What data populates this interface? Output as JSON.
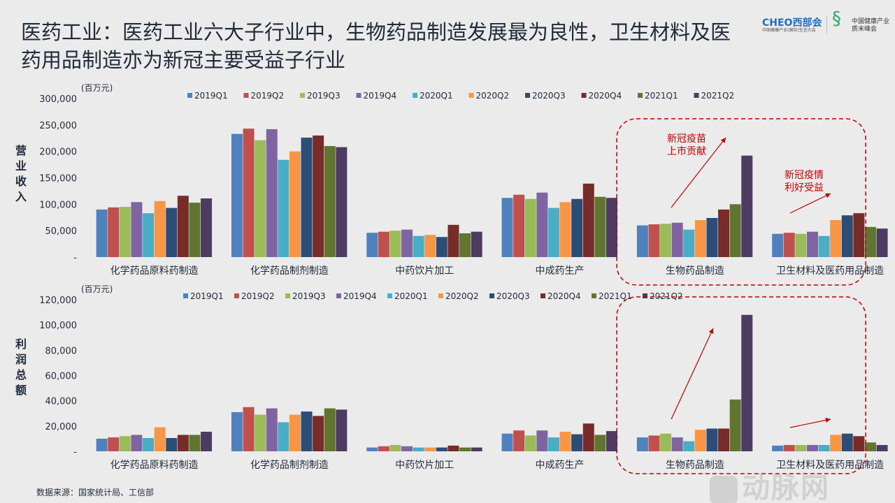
{
  "title": "医药工业：医药工业六大子行业中，生物药品制造发展最为良性，卫生材料及医药用品制造亦为新冠主要受益子行业",
  "logo": {
    "cheo": "CHEO西部会",
    "cheo_sub": "中国健康产业(国际)生态大会",
    "summit": "中国健康产业",
    "summit2": "质末峰会"
  },
  "source": "数据来源：国家统计局、工信部",
  "watermark": "动脉网",
  "annotations": {
    "vaccine": [
      "新冠疫苗",
      "上市贡献"
    ],
    "epidemic": [
      "新冠疫情",
      "利好受益"
    ]
  },
  "colors": [
    "#4f81bd",
    "#c0504d",
    "#9bbb59",
    "#8064a2",
    "#4bacc6",
    "#f79646",
    "#2c4d75",
    "#772c2a",
    "#5f7530",
    "#4d3b62"
  ],
  "chart_data": [
    {
      "type": "bar",
      "unit": "(百万元)",
      "ylabel": "营业收入",
      "ylim": [
        0,
        300000
      ],
      "yticks": [
        "-",
        "50,000",
        "100,000",
        "150,000",
        "200,000",
        "250,000",
        "300,000"
      ],
      "categories": [
        "化学药品原料药制造",
        "化学药品制剂制造",
        "中药饮片加工",
        "中成药生产",
        "生物药品制造",
        "卫生材料及医药用品制造"
      ],
      "series": [
        {
          "name": "2019Q1",
          "values": [
            90000,
            233000,
            46000,
            112000,
            60000,
            44000
          ]
        },
        {
          "name": "2019Q2",
          "values": [
            94000,
            243000,
            48000,
            118000,
            62000,
            46000
          ]
        },
        {
          "name": "2019Q3",
          "values": [
            95000,
            221000,
            50000,
            110000,
            63000,
            44000
          ]
        },
        {
          "name": "2019Q4",
          "values": [
            104000,
            242000,
            52000,
            122000,
            65000,
            48000
          ]
        },
        {
          "name": "2020Q1",
          "values": [
            83000,
            184000,
            40000,
            93000,
            52000,
            40000
          ]
        },
        {
          "name": "2020Q2",
          "values": [
            106000,
            200000,
            42000,
            104000,
            70000,
            70000
          ]
        },
        {
          "name": "2020Q3",
          "values": [
            93000,
            226000,
            38000,
            110000,
            74000,
            79000
          ]
        },
        {
          "name": "2020Q4",
          "values": [
            116000,
            230000,
            61000,
            139000,
            90000,
            83000
          ]
        },
        {
          "name": "2021Q1",
          "values": [
            103000,
            210000,
            45000,
            114000,
            100000,
            57000
          ]
        },
        {
          "name": "2021Q2",
          "values": [
            111000,
            208000,
            48000,
            112000,
            192000,
            54000
          ]
        }
      ]
    },
    {
      "type": "bar",
      "unit": "(百万元)",
      "ylabel": "利润总额",
      "ylim": [
        0,
        120000
      ],
      "yticks": [
        "-",
        "20,000",
        "40,000",
        "60,000",
        "80,000",
        "100,000",
        "120,000"
      ],
      "categories": [
        "化学药品原料药制造",
        "化学药品制剂制造",
        "中药饮片加工",
        "中成药生产",
        "生物药品制造",
        "卫生材料及医药用品制造"
      ],
      "series": [
        {
          "name": "2019Q1",
          "values": [
            10000,
            31000,
            3000,
            14000,
            11000,
            4500
          ]
        },
        {
          "name": "2019Q2",
          "values": [
            11000,
            35000,
            4000,
            16500,
            12500,
            5000
          ]
        },
        {
          "name": "2019Q3",
          "values": [
            12000,
            29000,
            5000,
            12500,
            14000,
            5000
          ]
        },
        {
          "name": "2019Q4",
          "values": [
            13000,
            34000,
            4000,
            16500,
            11000,
            5000
          ]
        },
        {
          "name": "2020Q1",
          "values": [
            10500,
            23000,
            3000,
            11000,
            8000,
            5000
          ]
        },
        {
          "name": "2020Q2",
          "values": [
            19000,
            29000,
            3000,
            15500,
            17000,
            13000
          ]
        },
        {
          "name": "2020Q3",
          "values": [
            10500,
            31500,
            3000,
            13500,
            18000,
            14000
          ]
        },
        {
          "name": "2020Q4",
          "values": [
            13000,
            28000,
            4500,
            22000,
            18000,
            12000
          ]
        },
        {
          "name": "2021Q1",
          "values": [
            13000,
            34000,
            3000,
            13000,
            41000,
            7000
          ]
        },
        {
          "name": "2021Q2",
          "values": [
            15500,
            33000,
            3000,
            16000,
            108000,
            5000
          ]
        }
      ]
    }
  ]
}
